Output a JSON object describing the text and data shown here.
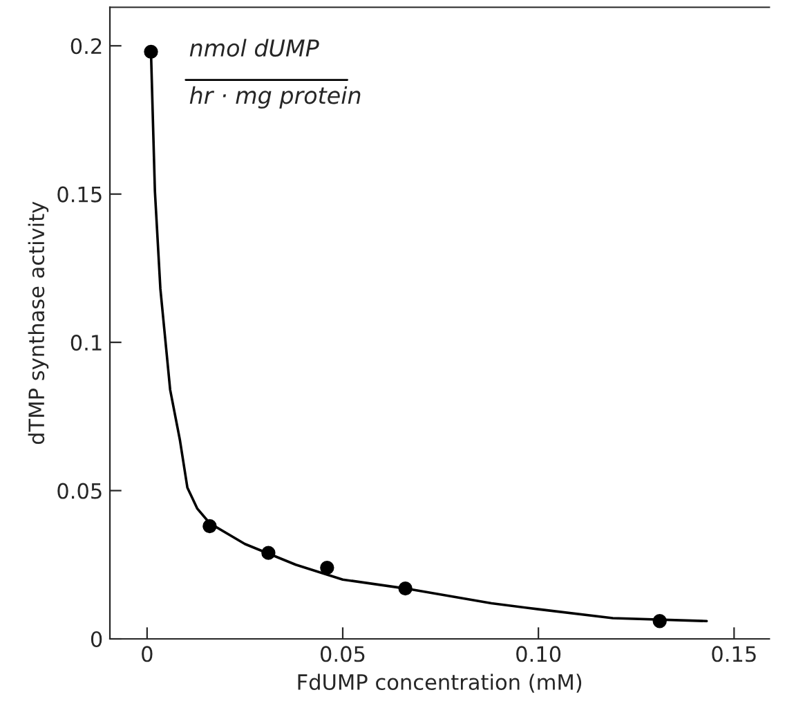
{
  "chart_data": {
    "type": "scatter",
    "xlabel": "FdUMP concentration (mM)",
    "ylabel": "dTMP synthase activity",
    "annotations": [
      "nmol dUMP",
      "hr · mg protein"
    ],
    "xlim": [
      -0.0095,
      0.159
    ],
    "ylim": [
      0,
      0.213
    ],
    "xticks": [
      0,
      0.05,
      {
        "value": 0.1,
        "label": "0.10"
      },
      0.15
    ],
    "yticks": [
      0,
      0.05,
      0.1,
      0.15,
      0.2
    ],
    "grid": false,
    "legend": false,
    "series": [
      {
        "color": "#000000",
        "marker": "circle",
        "x": [
          0.001,
          0.016,
          0.031,
          0.046,
          0.066,
          0.131
        ],
        "values": [
          0.198,
          0.038,
          0.029,
          0.024,
          0.017,
          0.006
        ]
      },
      {
        "type": "line",
        "color": "#000000",
        "marker": "none",
        "line_style": "solid",
        "x": [
          0.001,
          0.002,
          0.0034,
          0.0059,
          0.0084,
          0.0103,
          0.0128,
          0.016,
          0.025,
          0.038,
          0.05,
          0.066,
          0.088,
          0.1,
          0.119,
          0.143
        ],
        "values": [
          0.198,
          0.151,
          0.118,
          0.084,
          0.067,
          0.051,
          0.044,
          0.039,
          0.032,
          0.025,
          0.02,
          0.017,
          0.012,
          0.01,
          0.007,
          0.006
        ]
      }
    ]
  }
}
